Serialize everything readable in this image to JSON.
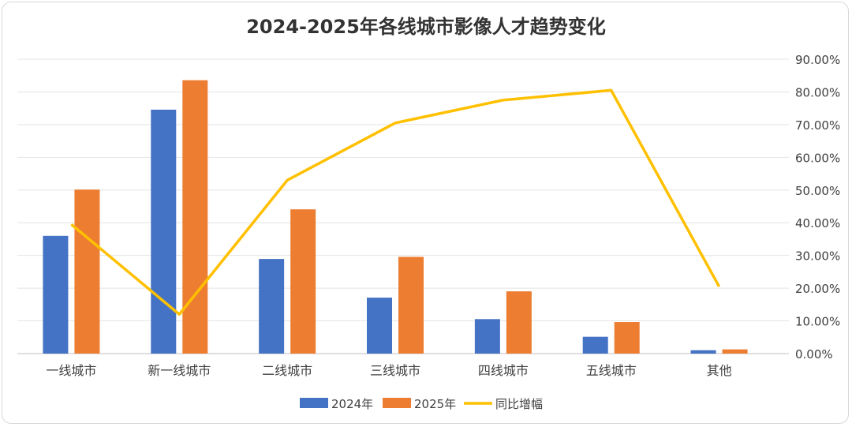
{
  "chart_data": {
    "type": "bar",
    "title": "2024-2025年各线城市影像人才趋势变化",
    "categories": [
      "一线城市",
      "新一线城市",
      "二线城市",
      "三线城市",
      "四线城市",
      "五线城市",
      "其他"
    ],
    "series": [
      {
        "name": "2024年",
        "type": "bar",
        "axis": "left",
        "color": "#4472C4",
        "values": [
          28.0,
          58.0,
          22.5,
          13.3,
          8.2,
          4.0,
          0.8
        ]
      },
      {
        "name": "2025年",
        "type": "bar",
        "axis": "left",
        "color": "#ED7D31",
        "values": [
          39.0,
          65.0,
          34.3,
          23.0,
          14.8,
          7.5,
          1.0
        ]
      },
      {
        "name": "同比增幅",
        "type": "line",
        "axis": "right",
        "color": "#FFC000",
        "values": [
          0.395,
          0.12,
          0.53,
          0.705,
          0.775,
          0.805,
          0.205
        ]
      }
    ],
    "y_left": {
      "min": 0,
      "max": 70,
      "step": 10,
      "show_labels": false
    },
    "y_right": {
      "min": 0,
      "max": 0.9,
      "step": 0.1,
      "tick_labels": [
        "0.00%",
        "10.00%",
        "20.00%",
        "30.00%",
        "40.00%",
        "50.00%",
        "60.00%",
        "70.00%",
        "80.00%",
        "90.00%"
      ]
    },
    "grid": true,
    "legend_position": "bottom"
  }
}
